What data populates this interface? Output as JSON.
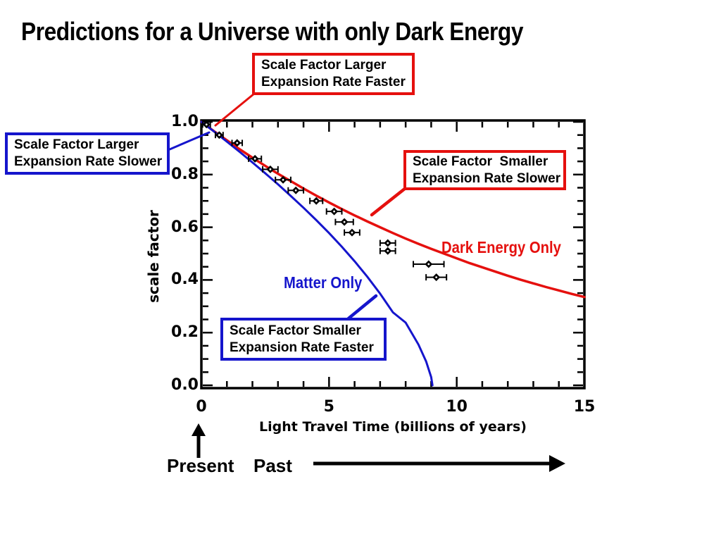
{
  "title": "Predictions for a Universe with only Dark Energy",
  "colors": {
    "red": "#e5100e",
    "blue": "#1515cc",
    "black": "#000000",
    "background": "#ffffff"
  },
  "callouts": {
    "top_red": {
      "line1": "Scale Factor Larger",
      "line2": "Expansion Rate Faster"
    },
    "left_blue": {
      "line1": "Scale Factor Larger",
      "line2": "Expansion Rate Slower"
    },
    "right_red": {
      "line1": "Scale Factor  Smaller",
      "line2": "Expansion Rate Slower"
    },
    "bottom_blue": {
      "line1": "Scale Factor Smaller",
      "line2": "Expansion Rate Faster"
    }
  },
  "curve_labels": {
    "dark_energy": "Dark Energy Only",
    "matter": "Matter Only"
  },
  "timeline": {
    "present": "Present",
    "past": "Past"
  },
  "chart_data": {
    "type": "line",
    "title": "Predictions for a Universe with only Dark Energy",
    "xlabel": "Light Travel Time (billions of years)",
    "ylabel": "scale factor",
    "xlim": [
      0,
      15
    ],
    "ylim": [
      0,
      1.0
    ],
    "grid": false,
    "x_ticks": [
      {
        "v": 0,
        "label": "0"
      },
      {
        "v": 5,
        "label": "5"
      },
      {
        "v": 10,
        "label": "10"
      },
      {
        "v": 15,
        "label": "15"
      }
    ],
    "x_minor_step": 1,
    "y_ticks": [
      {
        "v": 1.0,
        "label": "1.0"
      },
      {
        "v": 0.8,
        "label": "0.8"
      },
      {
        "v": 0.6,
        "label": "0.6"
      },
      {
        "v": 0.4,
        "label": "0.4"
      },
      {
        "v": 0.2,
        "label": "0.2"
      },
      {
        "v": 0.0,
        "label": "0.0"
      }
    ],
    "y_minor_step": 0.05,
    "series": [
      {
        "name": "Dark Energy Only",
        "color": "#e5100e",
        "x": [
          0,
          0.5,
          1,
          1.5,
          2,
          2.5,
          3,
          3.5,
          4,
          4.5,
          5,
          5.5,
          6,
          6.5,
          7,
          7.5,
          8,
          8.5,
          9,
          9.5,
          10,
          10.5,
          11,
          11.5,
          12,
          12.5,
          13,
          13.5,
          14,
          14.5,
          15
        ],
        "y": [
          1.0,
          0.964,
          0.93,
          0.896,
          0.864,
          0.833,
          0.803,
          0.775,
          0.747,
          0.72,
          0.694,
          0.669,
          0.645,
          0.622,
          0.6,
          0.578,
          0.557,
          0.537,
          0.518,
          0.5,
          0.482,
          0.464,
          0.448,
          0.432,
          0.416,
          0.401,
          0.387,
          0.373,
          0.36,
          0.347,
          0.335
        ]
      },
      {
        "name": "Matter Only",
        "color": "#1515cc",
        "x": [
          0,
          0.5,
          1,
          1.5,
          2,
          2.5,
          3,
          3.5,
          4,
          4.5,
          5,
          5.5,
          6,
          6.5,
          7,
          7.5,
          8,
          8.5,
          8.8,
          9.0,
          9.05
        ],
        "y": [
          1.0,
          0.963,
          0.925,
          0.886,
          0.846,
          0.805,
          0.763,
          0.719,
          0.674,
          0.627,
          0.578,
          0.526,
          0.471,
          0.412,
          0.348,
          0.277,
          0.238,
          0.155,
          0.091,
          0.031,
          0.0
        ]
      }
    ],
    "points": {
      "name": "supernova-data",
      "marker": "diamond",
      "color": "#000000",
      "x": [
        0.2,
        0.7,
        1.4,
        2.1,
        2.7,
        3.2,
        3.7,
        4.5,
        5.2,
        5.6,
        5.9,
        7.3,
        7.3,
        8.9,
        9.2
      ],
      "y": [
        0.99,
        0.95,
        0.92,
        0.86,
        0.82,
        0.78,
        0.74,
        0.7,
        0.66,
        0.62,
        0.58,
        0.54,
        0.51,
        0.46,
        0.41
      ],
      "xerr": [
        0.15,
        0.15,
        0.2,
        0.25,
        0.3,
        0.3,
        0.3,
        0.25,
        0.3,
        0.35,
        0.3,
        0.3,
        0.3,
        0.6,
        0.4
      ]
    }
  }
}
